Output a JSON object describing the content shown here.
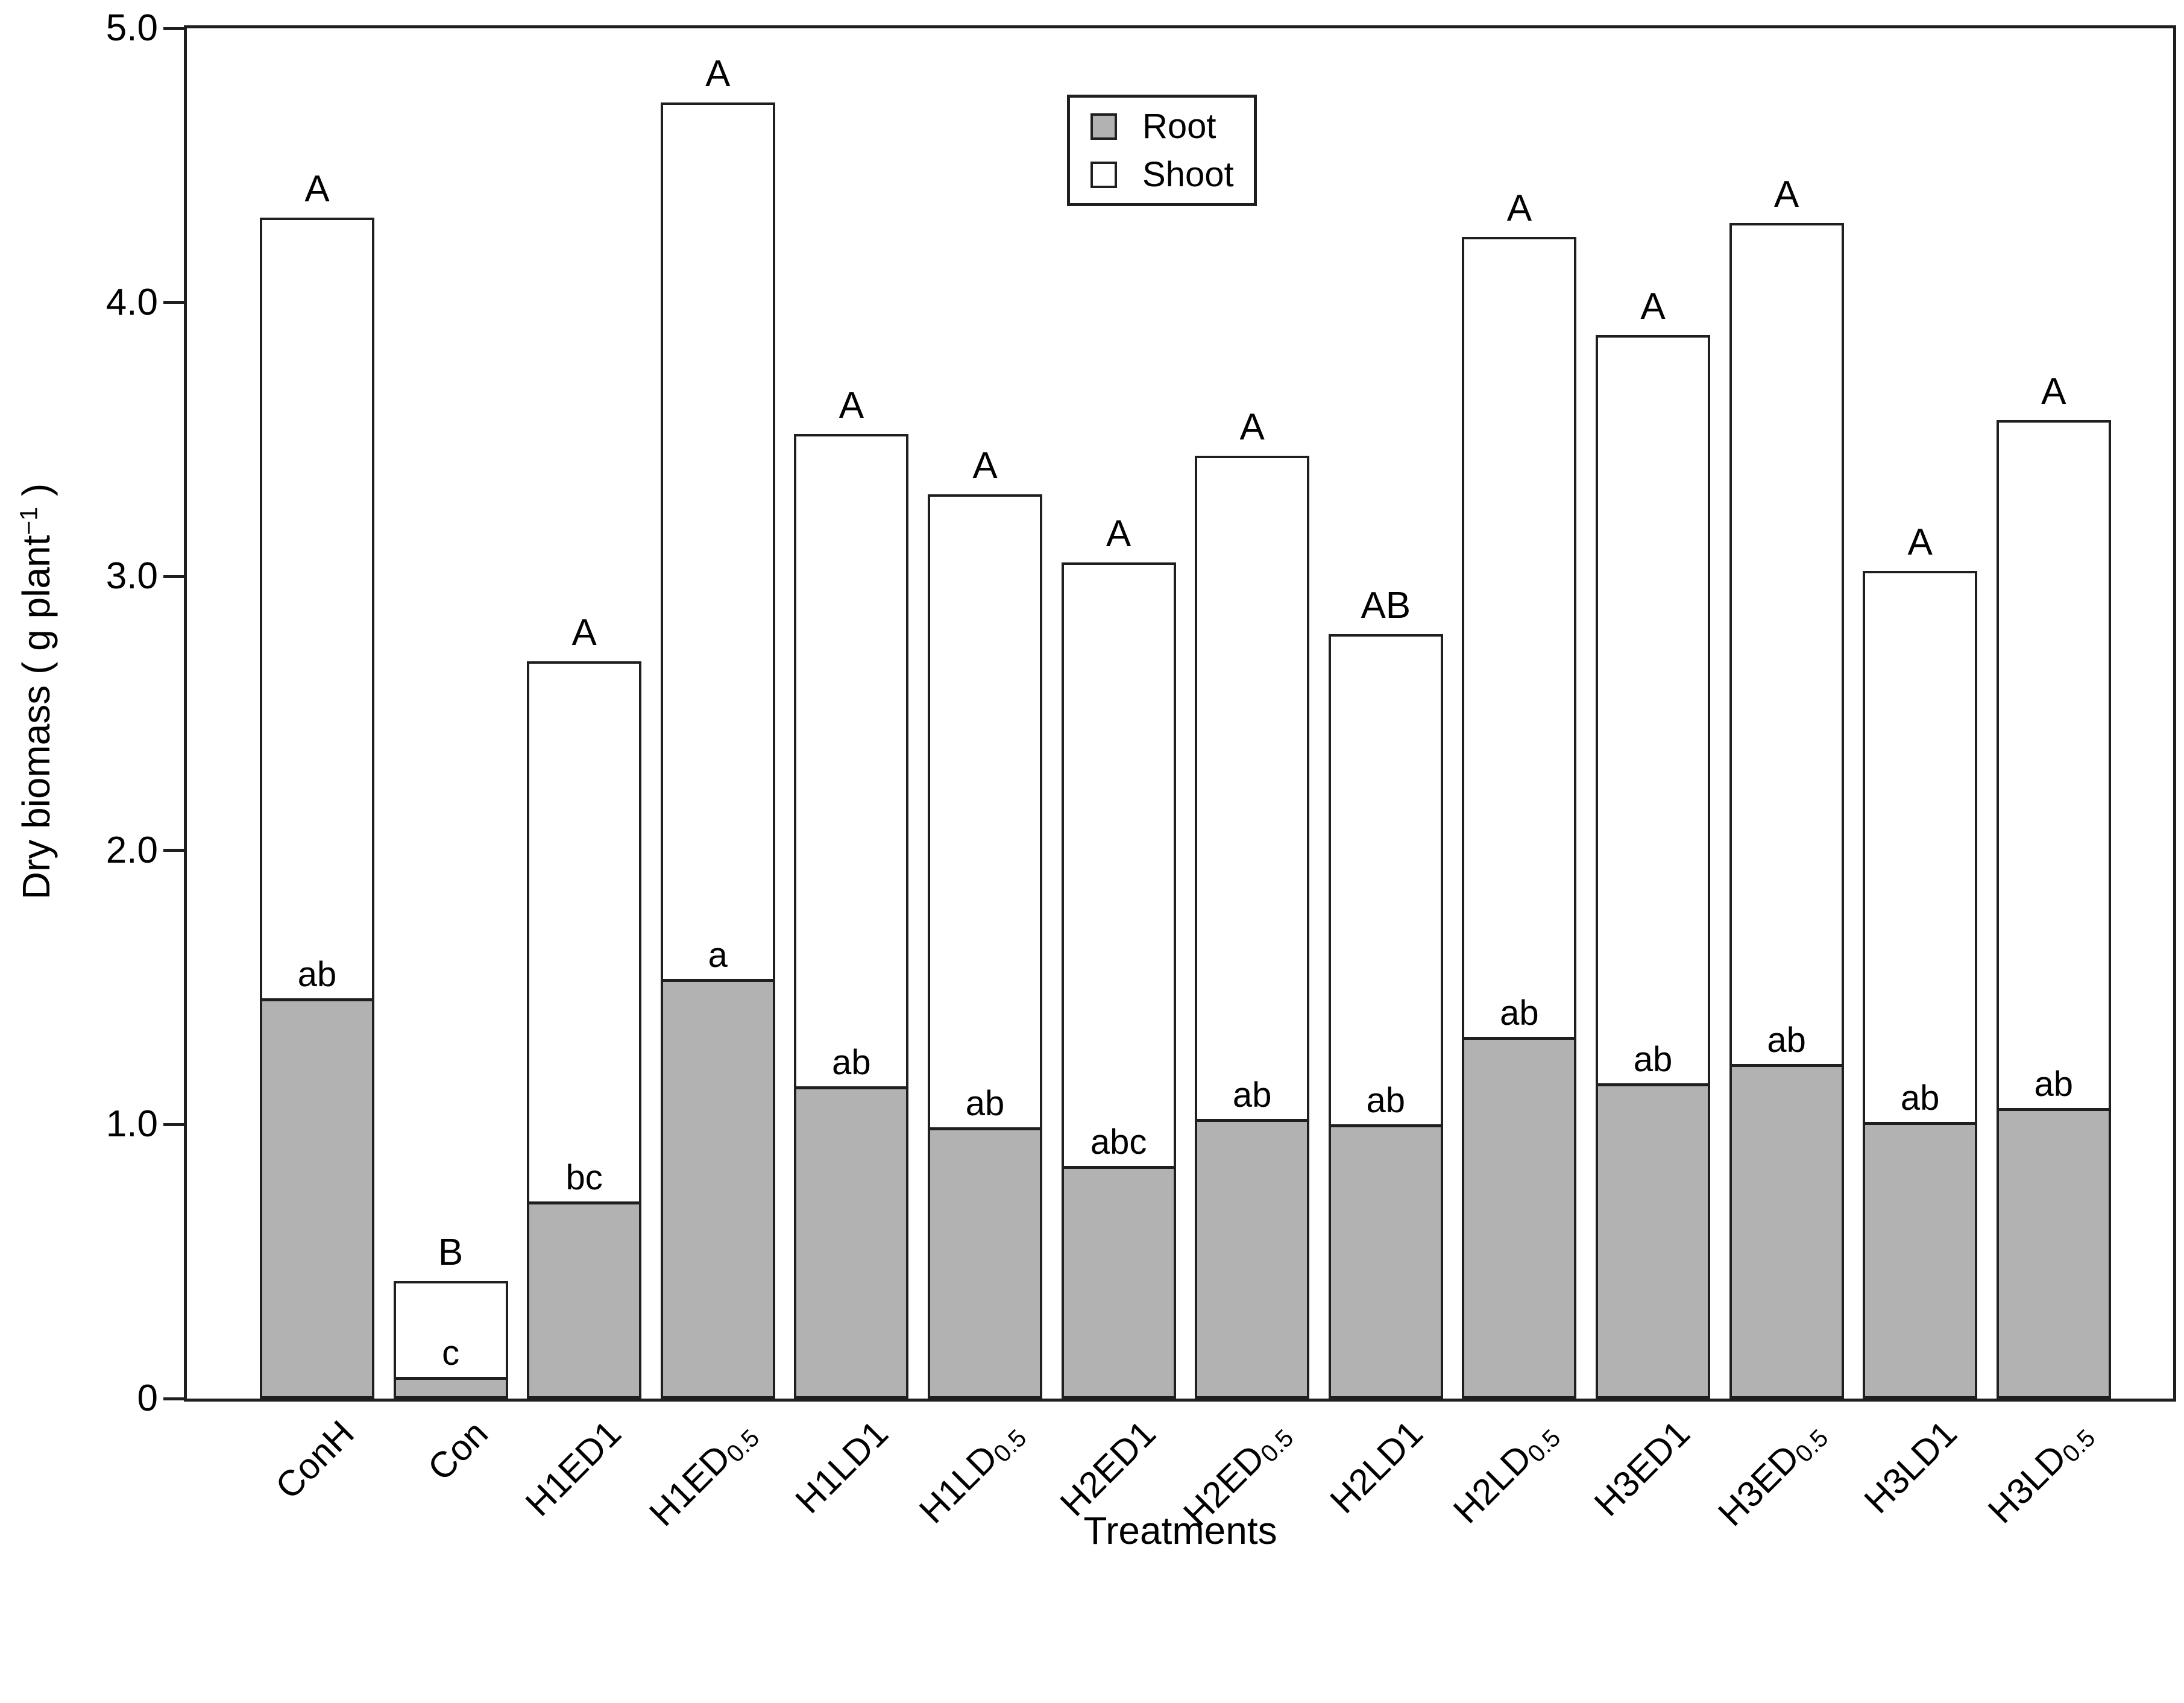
{
  "figure": {
    "x_axis_title": "Treatments",
    "y_axis_title": "Dry biomass ( g plant−1 )",
    "y_axis_title_parts": {
      "pre": "Dry biomass ( g plant",
      "sup": "−1",
      "post": " )"
    }
  },
  "chart_data": {
    "type": "bar",
    "stacked": true,
    "title": "",
    "xlabel": "Treatments",
    "ylabel": "Dry biomass ( g plant−1 )",
    "ylim": [
      0,
      5.0
    ],
    "grid": false,
    "legend_position": "top-center",
    "yticks": [
      {
        "value": 0,
        "label": "0"
      },
      {
        "value": 1,
        "label": "1.0"
      },
      {
        "value": 2,
        "label": "2.0"
      },
      {
        "value": 3,
        "label": "3.0"
      },
      {
        "value": 4,
        "label": "4.0"
      },
      {
        "value": 5,
        "label": "5.0"
      }
    ],
    "categories": [
      {
        "text": "ConH",
        "sub": ""
      },
      {
        "text": "Con",
        "sub": ""
      },
      {
        "text": "H1ED1",
        "sub": ""
      },
      {
        "text": "H1ED",
        "sub": "0.5"
      },
      {
        "text": "H1LD1",
        "sub": ""
      },
      {
        "text": "H1LD",
        "sub": "0.5"
      },
      {
        "text": "H2ED1",
        "sub": ""
      },
      {
        "text": "H2ED",
        "sub": "0.5"
      },
      {
        "text": "H2LD1",
        "sub": ""
      },
      {
        "text": "H2LD",
        "sub": "0.5"
      },
      {
        "text": "H3ED1",
        "sub": ""
      },
      {
        "text": "H3ED",
        "sub": "0.5"
      },
      {
        "text": "H3LD1",
        "sub": ""
      },
      {
        "text": "H3LD",
        "sub": "0.5"
      }
    ],
    "series": [
      {
        "name": "Root",
        "color": "#b2b2b2",
        "values": [
          1.46,
          0.08,
          0.72,
          1.53,
          1.14,
          0.99,
          0.85,
          1.02,
          1.0,
          1.32,
          1.15,
          1.22,
          1.01,
          1.06
        ]
      },
      {
        "name": "Shoot",
        "color": "#ffffff",
        "values": [
          2.85,
          0.35,
          1.97,
          3.2,
          2.38,
          2.31,
          2.2,
          2.42,
          1.79,
          2.92,
          2.73,
          3.07,
          2.01,
          2.51
        ]
      }
    ],
    "totals": [
      4.31,
      0.43,
      2.69,
      4.73,
      3.52,
      3.3,
      3.05,
      3.44,
      2.79,
      4.24,
      3.88,
      4.29,
      3.02,
      3.57
    ],
    "significance": {
      "shoot_total_letters": [
        "A",
        "B",
        "A",
        "A",
        "A",
        "A",
        "A",
        "A",
        "AB",
        "A",
        "A",
        "A",
        "A",
        "A"
      ],
      "root_letters": [
        "ab",
        "c",
        "bc",
        "a",
        "ab",
        "ab",
        "abc",
        "ab",
        "ab",
        "ab",
        "ab",
        "ab",
        "ab",
        "ab"
      ]
    },
    "colors": {
      "root_fill": "#b2b2b2",
      "shoot_fill": "#ffffff",
      "line": "#1f1f1f",
      "text": "#000000"
    }
  }
}
